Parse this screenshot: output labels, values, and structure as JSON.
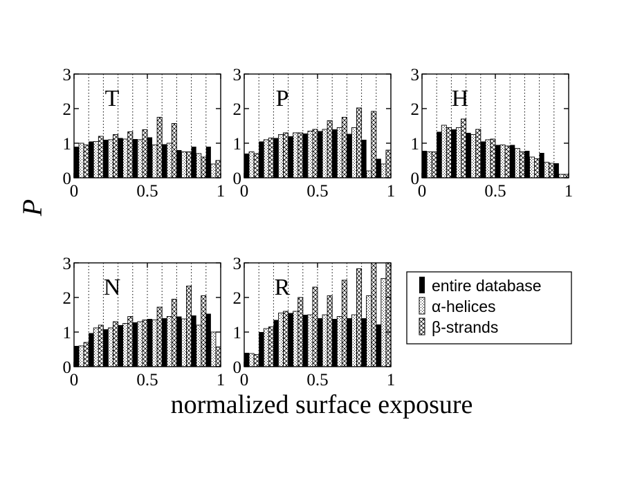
{
  "chart_data": {
    "type": "bar",
    "xlabel": "normalized surface exposure",
    "ylabel": "P",
    "xlim": [
      0,
      1
    ],
    "ylim": [
      0,
      3
    ],
    "xticks": [
      "0",
      "0.5",
      "1"
    ],
    "yticks": [
      "0",
      "1",
      "2",
      "3"
    ],
    "bins": [
      0.05,
      0.15,
      0.25,
      0.35,
      0.45,
      0.55,
      0.65,
      0.75,
      0.85,
      0.95
    ],
    "legend": {
      "entries": [
        "entire database",
        "α-helices",
        "β-strands"
      ],
      "position": "right"
    },
    "panels": [
      {
        "label": "T",
        "series": [
          {
            "name": "entire database",
            "values": [
              0.9,
              1.05,
              1.1,
              1.15,
              1.12,
              1.17,
              0.97,
              0.8,
              0.9,
              0.9
            ]
          },
          {
            "name": "α-helices",
            "values": [
              1.0,
              1.05,
              1.1,
              1.12,
              1.1,
              0.95,
              1.0,
              0.75,
              0.7,
              0.4
            ]
          },
          {
            "name": "β-strands",
            "values": [
              0.95,
              1.2,
              1.25,
              1.33,
              1.39,
              1.75,
              1.57,
              0.75,
              0.6,
              0.5
            ]
          }
        ]
      },
      {
        "label": "P",
        "series": [
          {
            "name": "entire database",
            "values": [
              0.7,
              1.05,
              1.15,
              1.2,
              1.28,
              1.35,
              1.4,
              1.27,
              1.1,
              0.55
            ]
          },
          {
            "name": "α-helices",
            "values": [
              0.75,
              1.1,
              1.25,
              1.3,
              1.35,
              1.4,
              1.45,
              1.45,
              0.2,
              0.4
            ]
          },
          {
            "name": "β-strands",
            "values": [
              0.7,
              1.15,
              1.3,
              1.3,
              1.4,
              1.65,
              1.75,
              2.02,
              1.92,
              0.8
            ]
          }
        ]
      },
      {
        "label": "H",
        "series": [
          {
            "name": "entire database",
            "values": [
              0.78,
              1.33,
              1.4,
              1.3,
              1.05,
              0.95,
              0.95,
              0.78,
              0.72,
              0.42
            ]
          },
          {
            "name": "α-helices",
            "values": [
              0.75,
              1.52,
              1.45,
              1.25,
              1.1,
              0.95,
              0.85,
              0.6,
              0.45,
              0.1
            ]
          },
          {
            "name": "β-strands",
            "values": [
              0.75,
              1.45,
              1.7,
              1.4,
              1.12,
              0.92,
              0.75,
              0.55,
              0.42,
              0.1
            ]
          }
        ]
      },
      {
        "label": "N",
        "series": [
          {
            "name": "entire database",
            "values": [
              0.6,
              0.97,
              1.08,
              1.2,
              1.28,
              1.38,
              1.4,
              1.45,
              1.48,
              1.53
            ]
          },
          {
            "name": "α-helices",
            "values": [
              0.6,
              1.12,
              1.12,
              1.25,
              1.3,
              1.35,
              1.45,
              1.38,
              1.2,
              1.0
            ]
          },
          {
            "name": "β-strands",
            "values": [
              0.7,
              1.2,
              1.3,
              1.45,
              1.35,
              1.72,
              1.95,
              2.33,
              2.05,
              0.57
            ]
          }
        ]
      },
      {
        "label": "R",
        "series": [
          {
            "name": "entire database",
            "values": [
              0.4,
              1.0,
              1.35,
              1.55,
              1.5,
              1.4,
              1.38,
              1.4,
              1.4,
              1.22
            ]
          },
          {
            "name": "α-helices",
            "values": [
              0.38,
              1.1,
              1.55,
              1.6,
              1.5,
              1.5,
              1.45,
              1.5,
              2.05,
              2.55
            ]
          },
          {
            "name": "β-strands",
            "values": [
              0.35,
              1.15,
              1.6,
              2.0,
              2.3,
              2.05,
              2.5,
              2.83,
              3.0,
              3.0
            ]
          }
        ]
      }
    ]
  },
  "colors": {
    "entire_database": "#000000",
    "axis": "#000000",
    "background": "#ffffff"
  }
}
